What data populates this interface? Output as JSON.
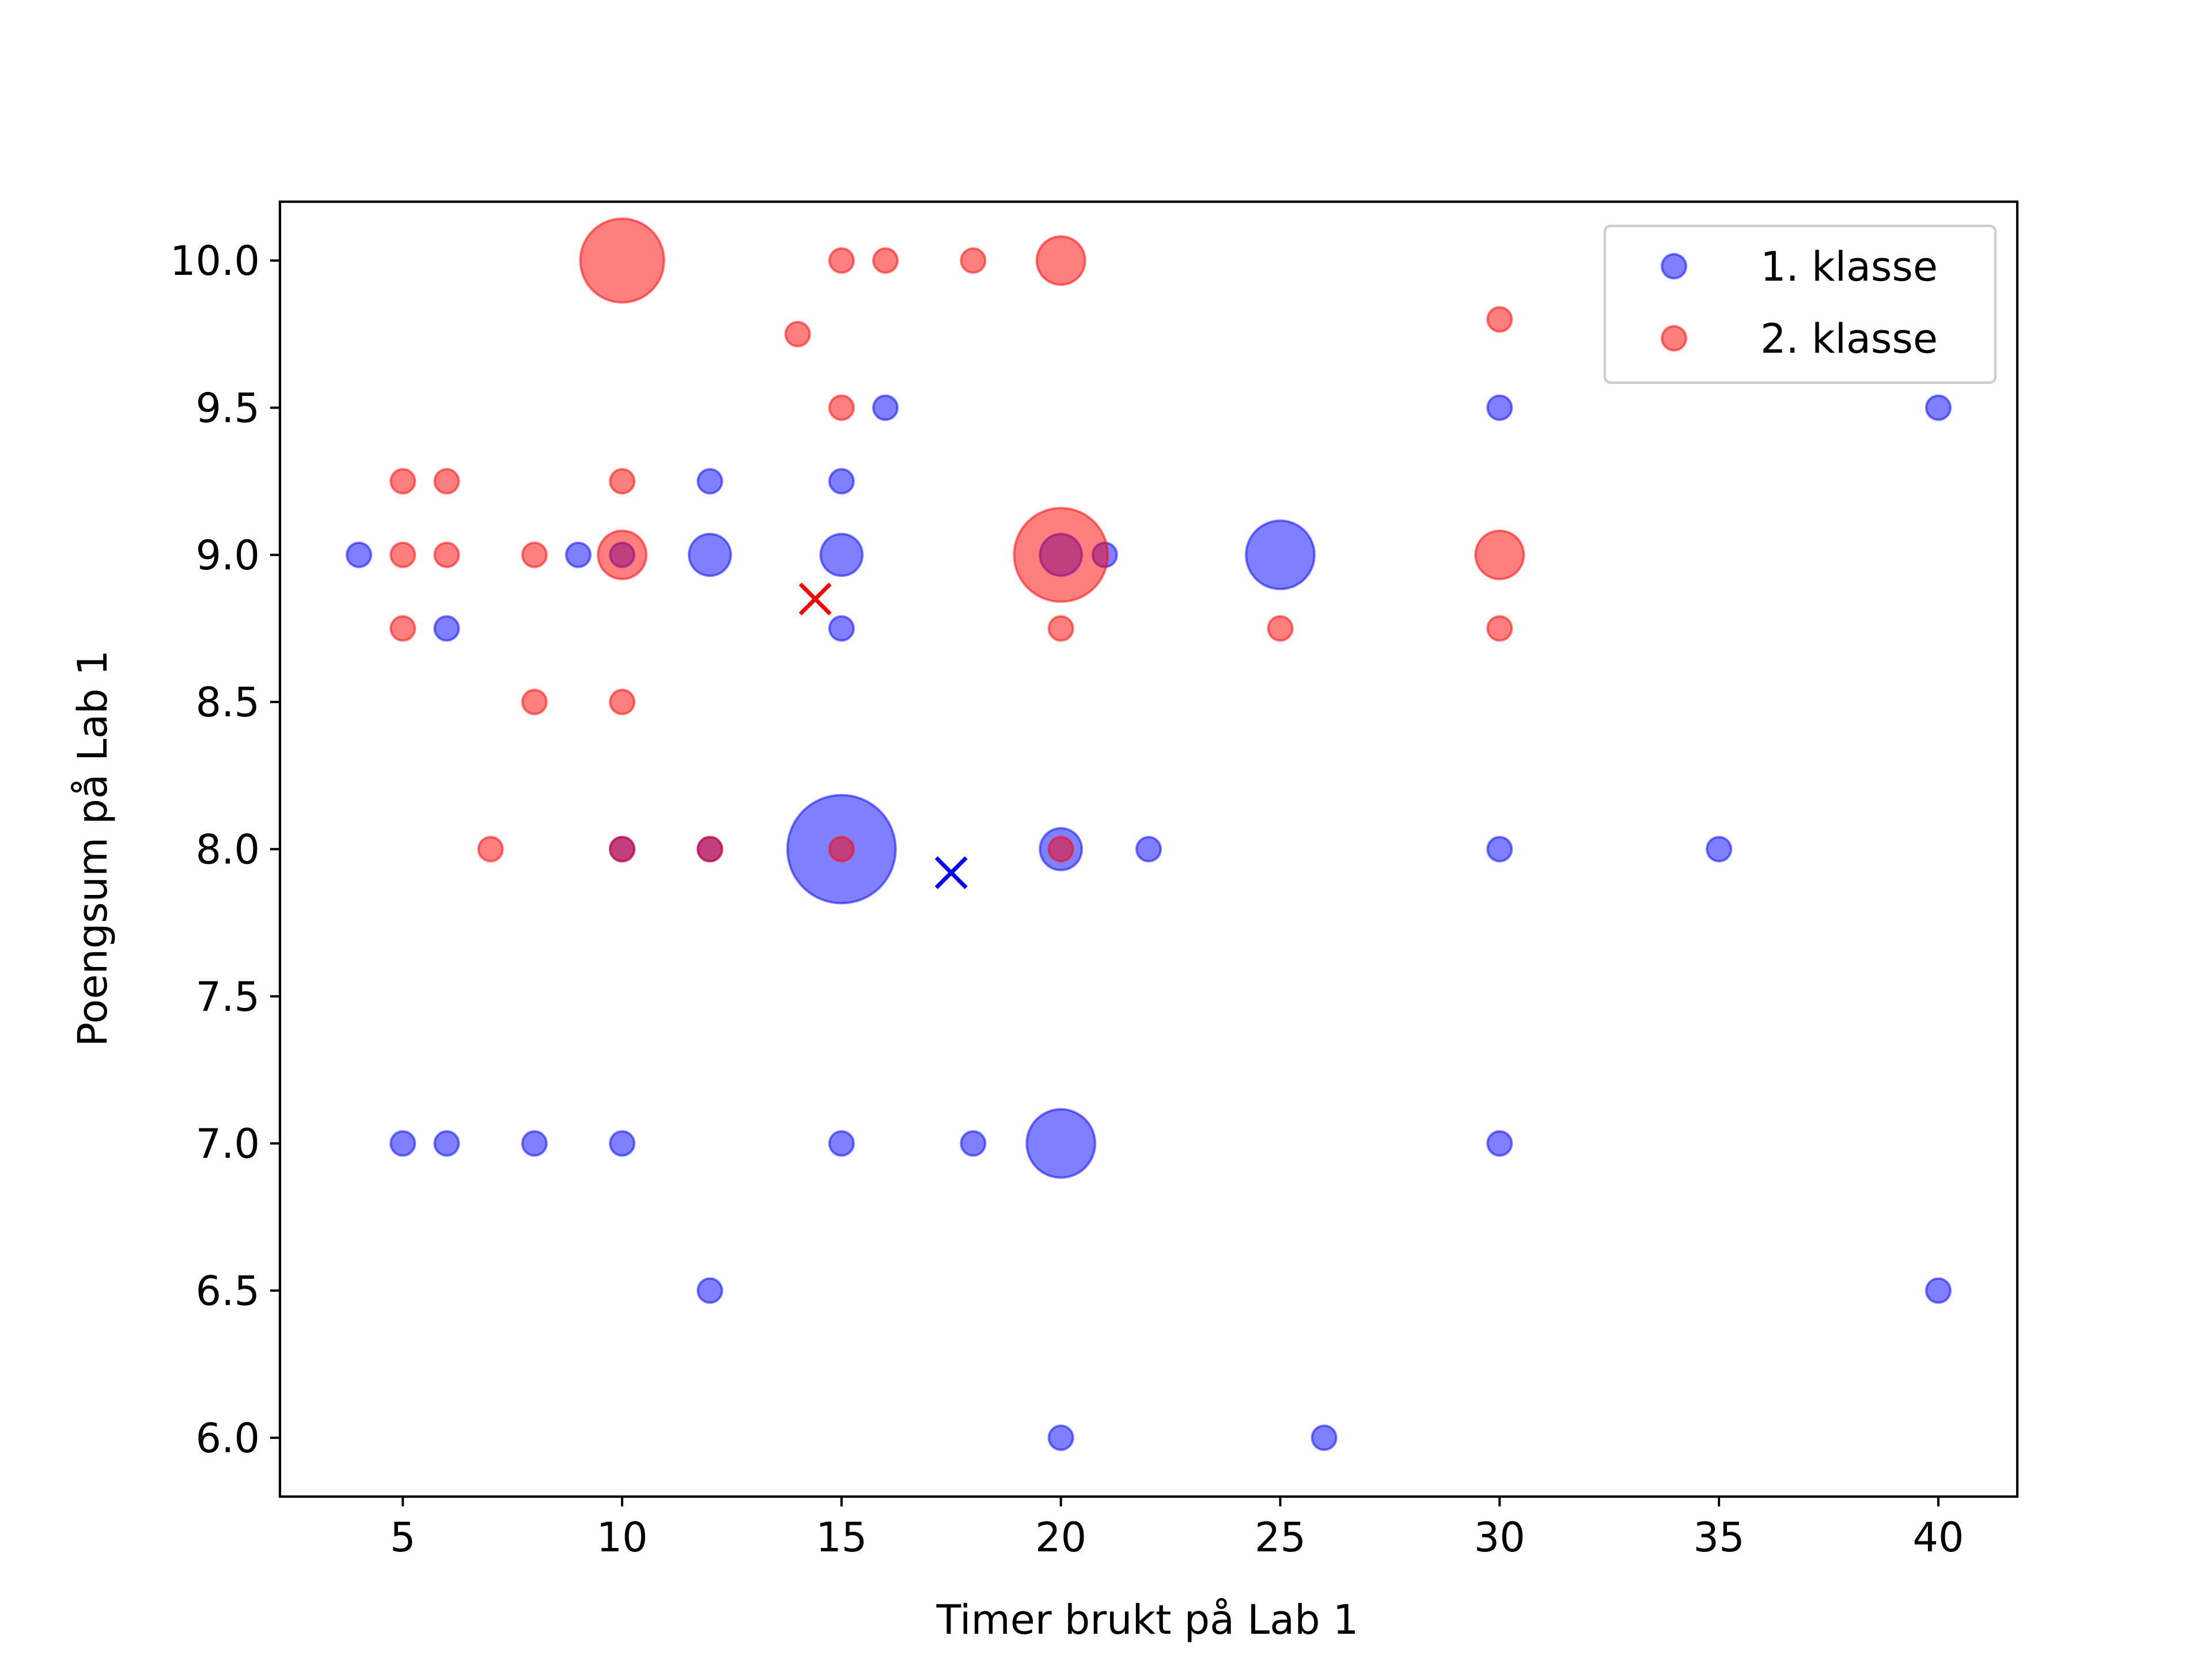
{
  "chart_data": {
    "type": "scatter",
    "xlabel": "Timer brukt på Lab 1",
    "ylabel": "Poengsum på Lab 1",
    "xlim": [
      2.2,
      41.8
    ],
    "ylim": [
      5.8,
      10.2
    ],
    "x_ticks": [
      5,
      10,
      15,
      20,
      25,
      30,
      35,
      40
    ],
    "x_tick_labels": [
      "5",
      "10",
      "15",
      "20",
      "25",
      "30",
      "35",
      "40"
    ],
    "y_ticks": [
      6.0,
      6.5,
      7.0,
      7.5,
      8.0,
      8.5,
      9.0,
      9.5,
      10.0
    ],
    "y_tick_labels": [
      "6.0",
      "6.5",
      "7.0",
      "7.5",
      "8.0",
      "8.5",
      "9.0",
      "9.5",
      "10.0"
    ],
    "grid": false,
    "legend_position": "top-right",
    "series": [
      {
        "name": "1. klasse",
        "color": "#0000ff",
        "alpha": 0.5,
        "marker": "circle-sized-by-count",
        "points": [
          {
            "x": 4,
            "y": 9.0,
            "count": 1
          },
          {
            "x": 9,
            "y": 9.0,
            "count": 1
          },
          {
            "x": 10,
            "y": 9.0,
            "count": 1
          },
          {
            "x": 12,
            "y": 9.25,
            "count": 1
          },
          {
            "x": 12,
            "y": 9.0,
            "count": 3
          },
          {
            "x": 15,
            "y": 9.25,
            "count": 1
          },
          {
            "x": 15,
            "y": 9.0,
            "count": 3
          },
          {
            "x": 15,
            "y": 8.75,
            "count": 1
          },
          {
            "x": 16,
            "y": 9.5,
            "count": 1
          },
          {
            "x": 6,
            "y": 8.75,
            "count": 1
          },
          {
            "x": 20,
            "y": 9.0,
            "count": 3
          },
          {
            "x": 21,
            "y": 9.0,
            "count": 1
          },
          {
            "x": 25,
            "y": 9.0,
            "count": 8
          },
          {
            "x": 30,
            "y": 9.5,
            "count": 1
          },
          {
            "x": 40,
            "y": 9.5,
            "count": 1
          },
          {
            "x": 10,
            "y": 8.0,
            "count": 1
          },
          {
            "x": 12,
            "y": 8.0,
            "count": 1
          },
          {
            "x": 15,
            "y": 8.0,
            "count": 20
          },
          {
            "x": 20,
            "y": 8.0,
            "count": 3
          },
          {
            "x": 22,
            "y": 8.0,
            "count": 1
          },
          {
            "x": 30,
            "y": 8.0,
            "count": 1
          },
          {
            "x": 35,
            "y": 8.0,
            "count": 1
          },
          {
            "x": 5,
            "y": 7.0,
            "count": 1
          },
          {
            "x": 6,
            "y": 7.0,
            "count": 1
          },
          {
            "x": 8,
            "y": 7.0,
            "count": 1
          },
          {
            "x": 10,
            "y": 7.0,
            "count": 1
          },
          {
            "x": 15,
            "y": 7.0,
            "count": 1
          },
          {
            "x": 18,
            "y": 7.0,
            "count": 1
          },
          {
            "x": 20,
            "y": 7.0,
            "count": 8
          },
          {
            "x": 30,
            "y": 7.0,
            "count": 1
          },
          {
            "x": 12,
            "y": 6.5,
            "count": 1
          },
          {
            "x": 40,
            "y": 6.5,
            "count": 1
          },
          {
            "x": 20,
            "y": 6.0,
            "count": 1
          },
          {
            "x": 26,
            "y": 6.0,
            "count": 1
          }
        ],
        "mean": {
          "x": 17.5,
          "y": 7.92
        }
      },
      {
        "name": "2. klasse",
        "color": "#ff0000",
        "alpha": 0.5,
        "marker": "circle-sized-by-count",
        "points": [
          {
            "x": 10,
            "y": 10.0,
            "count": 12
          },
          {
            "x": 15,
            "y": 10.0,
            "count": 1
          },
          {
            "x": 16,
            "y": 10.0,
            "count": 1
          },
          {
            "x": 18,
            "y": 10.0,
            "count": 1
          },
          {
            "x": 20,
            "y": 10.0,
            "count": 4
          },
          {
            "x": 14,
            "y": 9.75,
            "count": 1
          },
          {
            "x": 30,
            "y": 9.8,
            "count": 1
          },
          {
            "x": 15,
            "y": 9.5,
            "count": 1
          },
          {
            "x": 5,
            "y": 9.25,
            "count": 1
          },
          {
            "x": 6,
            "y": 9.25,
            "count": 1
          },
          {
            "x": 10,
            "y": 9.25,
            "count": 1
          },
          {
            "x": 5,
            "y": 9.0,
            "count": 1
          },
          {
            "x": 6,
            "y": 9.0,
            "count": 1
          },
          {
            "x": 8,
            "y": 9.0,
            "count": 1
          },
          {
            "x": 10,
            "y": 9.0,
            "count": 4
          },
          {
            "x": 20,
            "y": 9.0,
            "count": 15
          },
          {
            "x": 30,
            "y": 9.0,
            "count": 4
          },
          {
            "x": 5,
            "y": 8.75,
            "count": 1
          },
          {
            "x": 20,
            "y": 8.75,
            "count": 1
          },
          {
            "x": 25,
            "y": 8.75,
            "count": 1
          },
          {
            "x": 30,
            "y": 8.75,
            "count": 1
          },
          {
            "x": 8,
            "y": 8.5,
            "count": 1
          },
          {
            "x": 10,
            "y": 8.5,
            "count": 1
          },
          {
            "x": 7,
            "y": 8.0,
            "count": 1
          },
          {
            "x": 10,
            "y": 8.0,
            "count": 1
          },
          {
            "x": 12,
            "y": 8.0,
            "count": 1
          },
          {
            "x": 15,
            "y": 8.0,
            "count": 1
          },
          {
            "x": 20,
            "y": 8.0,
            "count": 1
          }
        ],
        "mean": {
          "x": 14.4,
          "y": 8.85
        }
      }
    ]
  }
}
